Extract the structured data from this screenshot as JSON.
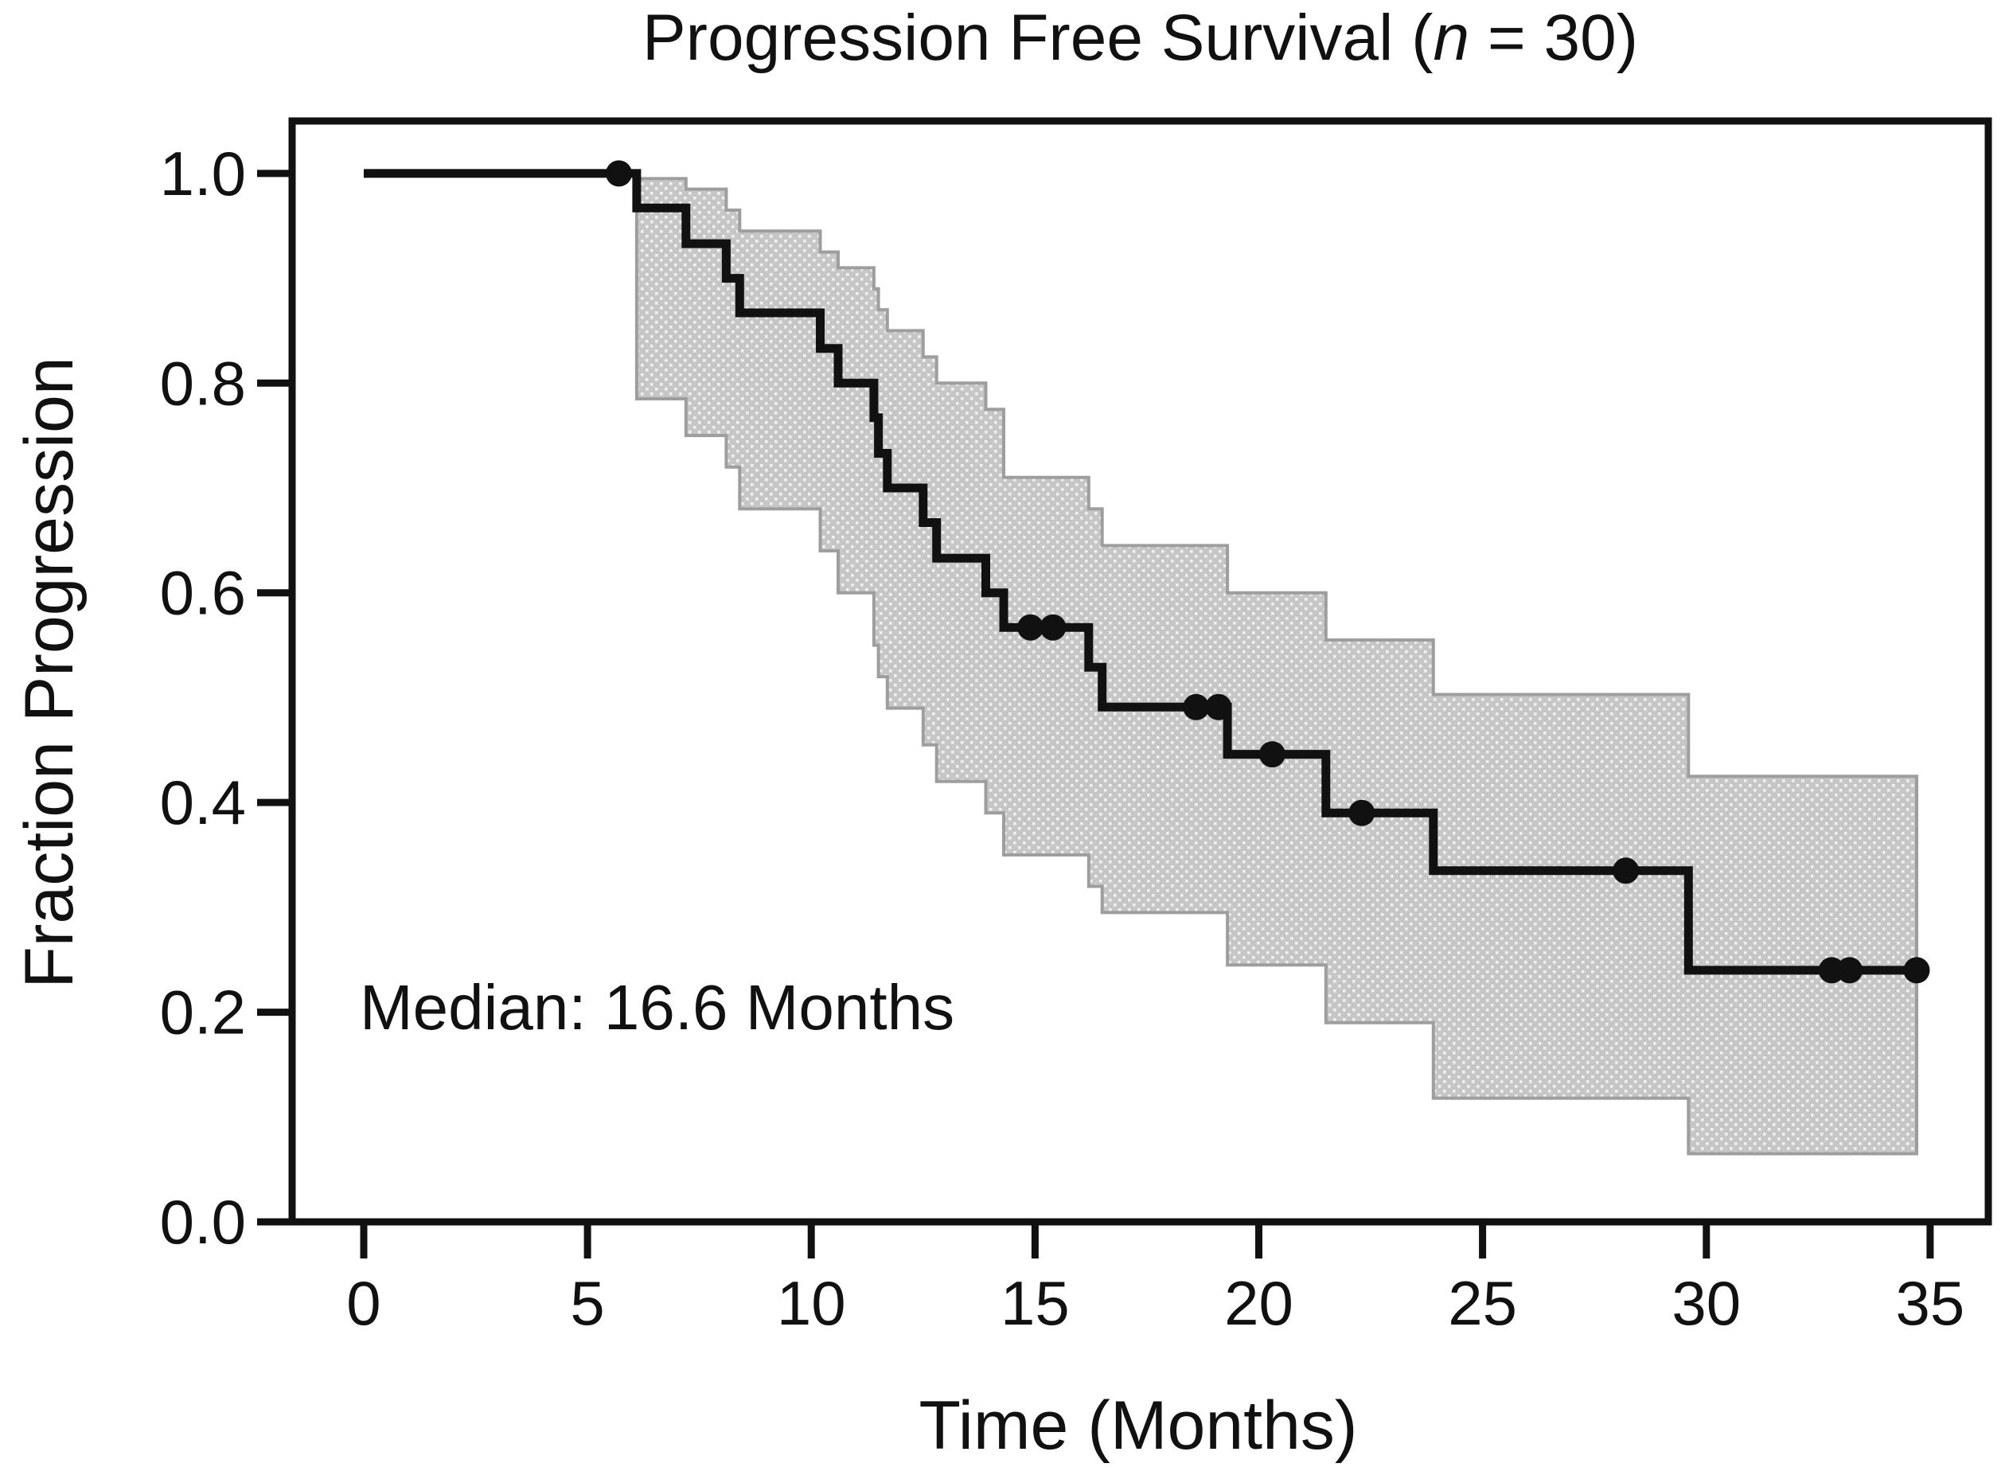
{
  "page": {
    "background": "#ffffff"
  },
  "chart_data": {
    "type": "line",
    "subtype": "kaplan-meier-step-with-confidence-band",
    "title": {
      "prefix": "Progression Free Survival (",
      "italic": "n",
      "suffix": " = 30)"
    },
    "xlabel": "Time (Months)",
    "ylabel": "Fraction Progression",
    "annotation": "Median: 16.6 Months",
    "legend": false,
    "grid": false,
    "xlim": [
      -1.6,
      36.3
    ],
    "ylim": [
      0,
      1.05
    ],
    "xticks": [
      {
        "value": 0,
        "label": "0"
      },
      {
        "value": 5,
        "label": "5"
      },
      {
        "value": 10,
        "label": "10"
      },
      {
        "value": 15,
        "label": "15"
      },
      {
        "value": 20,
        "label": "20"
      },
      {
        "value": 25,
        "label": "25"
      },
      {
        "value": 30,
        "label": "30"
      },
      {
        "value": 35,
        "label": "35"
      }
    ],
    "yticks": [
      {
        "value": 0.0,
        "label": "0.0"
      },
      {
        "value": 0.2,
        "label": "0.2"
      },
      {
        "value": 0.4,
        "label": "0.4"
      },
      {
        "value": 0.6,
        "label": "0.6"
      },
      {
        "value": 0.8,
        "label": "0.8"
      },
      {
        "value": 1.0,
        "label": "1.0"
      }
    ],
    "t_end": 34.7,
    "survival_steps": [
      {
        "t": 0,
        "s": 1.0
      },
      {
        "t": 6.1,
        "s": 0.967
      },
      {
        "t": 7.2,
        "s": 0.933
      },
      {
        "t": 8.1,
        "s": 0.9
      },
      {
        "t": 8.4,
        "s": 0.867
      },
      {
        "t": 10.2,
        "s": 0.833
      },
      {
        "t": 10.6,
        "s": 0.8
      },
      {
        "t": 11.4,
        "s": 0.767
      },
      {
        "t": 11.5,
        "s": 0.733
      },
      {
        "t": 11.7,
        "s": 0.7
      },
      {
        "t": 12.5,
        "s": 0.667
      },
      {
        "t": 12.8,
        "s": 0.633
      },
      {
        "t": 13.9,
        "s": 0.6
      },
      {
        "t": 14.3,
        "s": 0.567
      },
      {
        "t": 16.2,
        "s": 0.529
      },
      {
        "t": 16.5,
        "s": 0.491
      },
      {
        "t": 19.3,
        "s": 0.446
      },
      {
        "t": 21.5,
        "s": 0.39
      },
      {
        "t": 23.9,
        "s": 0.335
      },
      {
        "t": 29.6,
        "s": 0.24
      }
    ],
    "censor_marks": [
      {
        "t": 5.7,
        "s": 1.0
      },
      {
        "t": 14.9,
        "s": 0.567
      },
      {
        "t": 15.4,
        "s": 0.567
      },
      {
        "t": 18.6,
        "s": 0.491
      },
      {
        "t": 19.1,
        "s": 0.491
      },
      {
        "t": 20.3,
        "s": 0.446
      },
      {
        "t": 22.3,
        "s": 0.39
      },
      {
        "t": 28.2,
        "s": 0.335
      },
      {
        "t": 32.8,
        "s": 0.24
      },
      {
        "t": 33.2,
        "s": 0.24
      },
      {
        "t": 34.7,
        "s": 0.24
      }
    ],
    "ci_band": [
      {
        "t": 6.1,
        "hi": 0.995,
        "lo": 0.785
      },
      {
        "t": 7.2,
        "hi": 0.985,
        "lo": 0.75
      },
      {
        "t": 8.1,
        "hi": 0.965,
        "lo": 0.72
      },
      {
        "t": 8.4,
        "hi": 0.945,
        "lo": 0.68
      },
      {
        "t": 10.2,
        "hi": 0.925,
        "lo": 0.64
      },
      {
        "t": 10.6,
        "hi": 0.91,
        "lo": 0.6
      },
      {
        "t": 11.4,
        "hi": 0.89,
        "lo": 0.55
      },
      {
        "t": 11.5,
        "hi": 0.87,
        "lo": 0.52
      },
      {
        "t": 11.7,
        "hi": 0.85,
        "lo": 0.49
      },
      {
        "t": 12.5,
        "hi": 0.825,
        "lo": 0.455
      },
      {
        "t": 12.8,
        "hi": 0.8,
        "lo": 0.42
      },
      {
        "t": 13.9,
        "hi": 0.775,
        "lo": 0.39
      },
      {
        "t": 14.3,
        "hi": 0.71,
        "lo": 0.35
      },
      {
        "t": 16.2,
        "hi": 0.68,
        "lo": 0.32
      },
      {
        "t": 16.5,
        "hi": 0.645,
        "lo": 0.295
      },
      {
        "t": 19.3,
        "hi": 0.6,
        "lo": 0.245
      },
      {
        "t": 21.5,
        "hi": 0.555,
        "lo": 0.19
      },
      {
        "t": 23.9,
        "hi": 0.503,
        "lo": 0.118
      },
      {
        "t": 29.6,
        "hi": 0.425,
        "lo": 0.065
      }
    ],
    "colors": {
      "curve": "#111111",
      "ci_fill": "#c6c6c6",
      "ci_dot": "#f0f0f0",
      "ci_edge": "#9e9e9e",
      "frame": "#111111",
      "text": "#111111"
    }
  }
}
